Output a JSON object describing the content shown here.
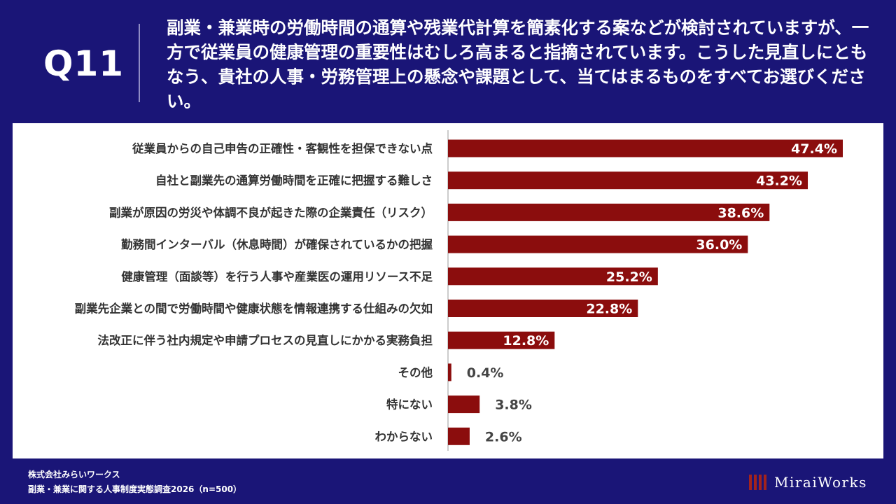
{
  "header": {
    "question_number": "Q11",
    "question_text": "副業・兼業時の労働時間の通算や残業代計算を簡素化する案などが検討されていますが、一方で従業員の健康管理の重要性はむしろ高まると指摘されています。こうした見直しにともなう、貴社の人事・労務管理上の懸念や課題として、当てはまるものをすべてお選びください。"
  },
  "chart_data": {
    "type": "bar",
    "orientation": "horizontal",
    "categories": [
      "従業員からの自己申告の正確性・客観性を担保できない点",
      "自社と副業先の通算労働時間を正確に把握する難しさ",
      "副業が原因の労災や体調不良が起きた際の企業責任（リスク）",
      "勤務間インターバル（休息時間）が確保されているかの把握",
      "健康管理（面談等）を行う人事や産業医の運用リソース不足",
      "副業先企業との間で労働時間や健康状態を情報連携する仕組みの欠如",
      "法改正に伴う社内規定や申請プロセスの見直しにかかる実務負担",
      "その他",
      "特にない",
      "わからない"
    ],
    "values": [
      47.4,
      43.2,
      38.6,
      36.0,
      25.2,
      22.8,
      12.8,
      0.4,
      3.8,
      2.6
    ],
    "value_labels": [
      "47.4%",
      "43.2%",
      "38.6%",
      "36.0%",
      "25.2%",
      "22.8%",
      "12.8%",
      "0.4%",
      "3.8%",
      "2.6%"
    ],
    "xlim": [
      0,
      50
    ],
    "bar_color": "#8b0d0d",
    "grid": false
  },
  "footer": {
    "company": "株式会社みらいワークス",
    "survey": "副業・兼業に関する人事制度実態調査2026（n=500）"
  },
  "logo": {
    "text": "MiraiWorks"
  },
  "colors": {
    "background": "#1a1577",
    "panel": "#ffffff",
    "bar": "#8b0d0d",
    "axis": "#999999"
  }
}
